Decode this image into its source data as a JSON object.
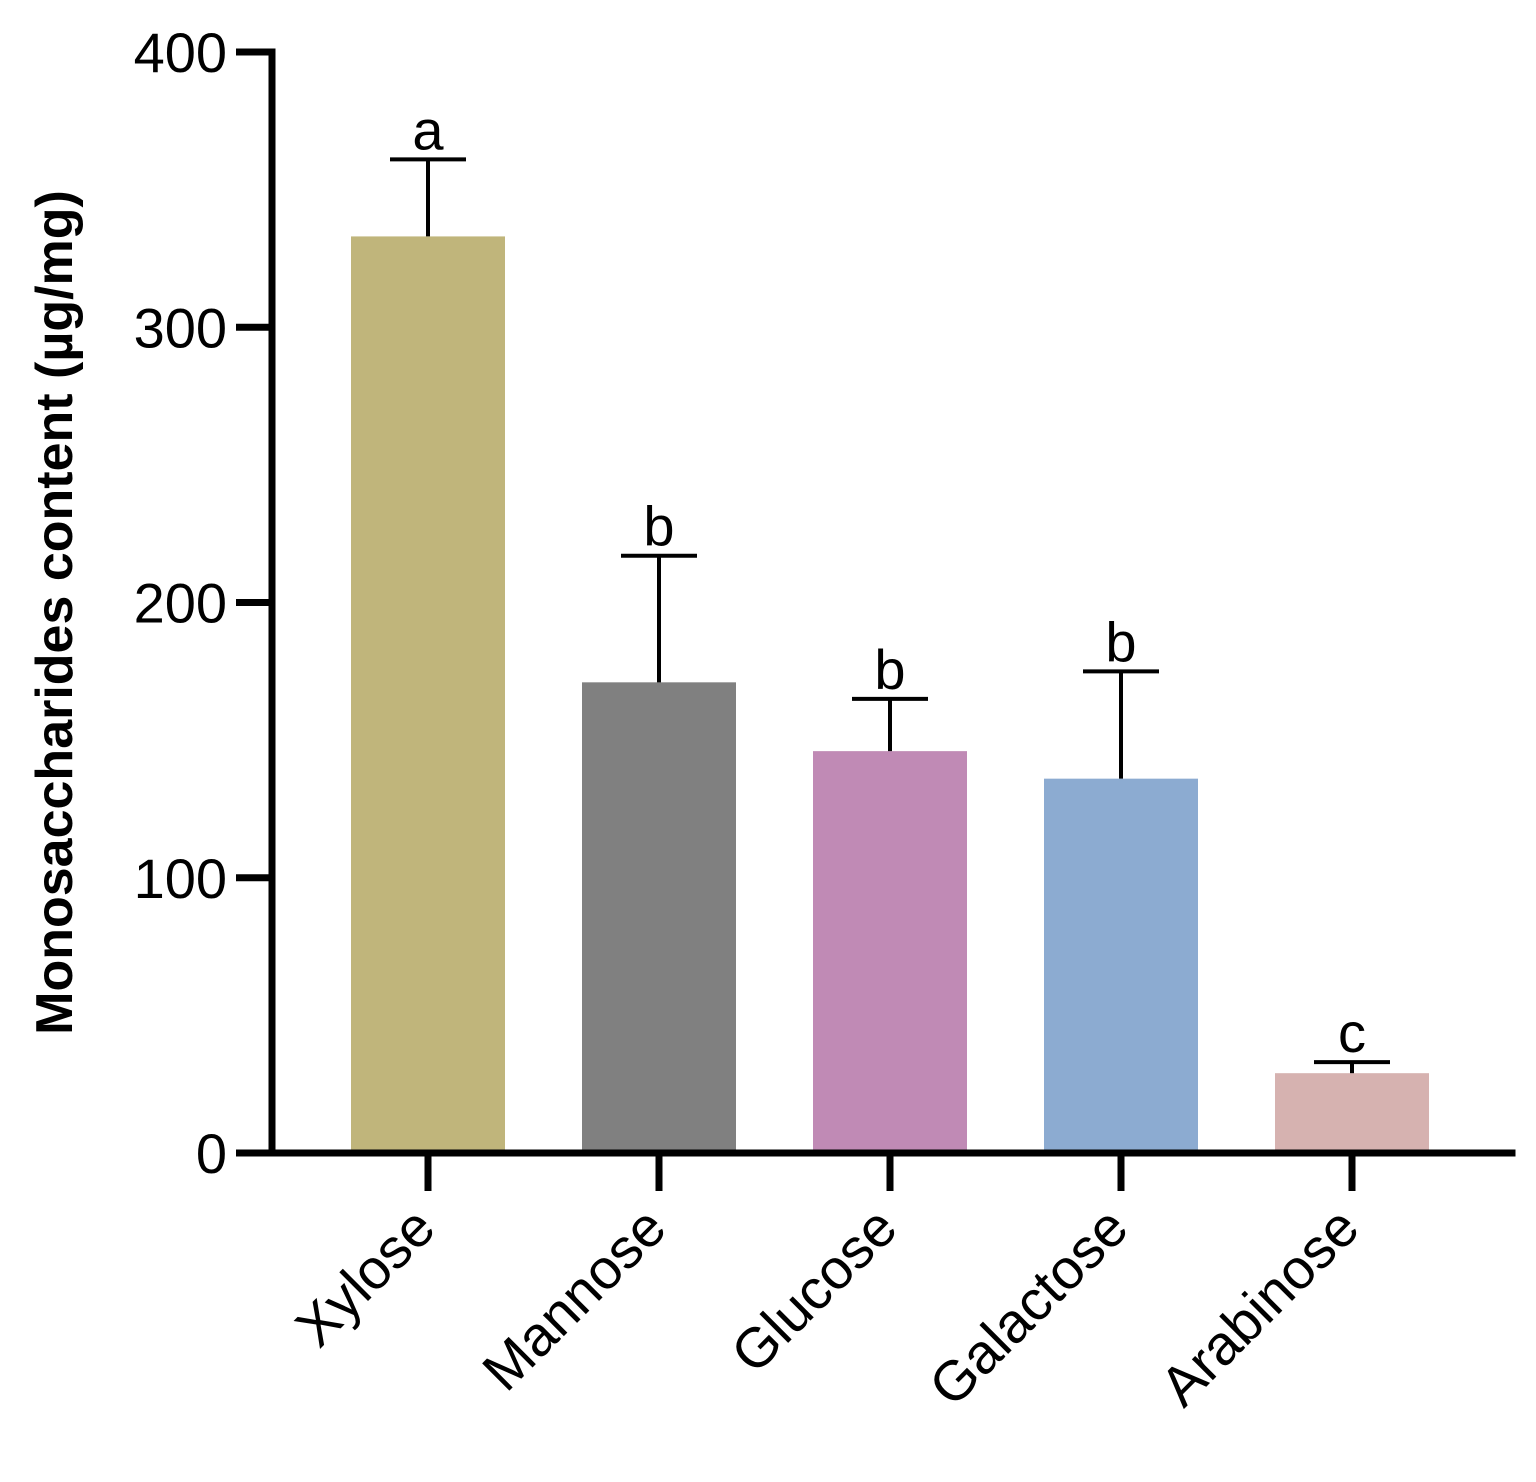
{
  "chart_data": {
    "type": "bar",
    "categories": [
      "Xylose",
      "Mannose",
      "Glucose",
      "Galactose",
      "Arabinose"
    ],
    "values": [
      333,
      171,
      146,
      136,
      29
    ],
    "error": [
      28,
      46,
      19,
      39,
      4
    ],
    "significance": [
      "a",
      "b",
      "b",
      "b",
      "c"
    ],
    "colors": [
      "#C0B57B",
      "#808080",
      "#C08AB5",
      "#8CABD1",
      "#D6B2B0"
    ],
    "ylabel": "Monosaccharides content (µg/mg)",
    "xlabel": "",
    "ylim": [
      0,
      400
    ],
    "yticks": [
      0,
      100,
      200,
      300,
      400
    ],
    "grid": false
  }
}
